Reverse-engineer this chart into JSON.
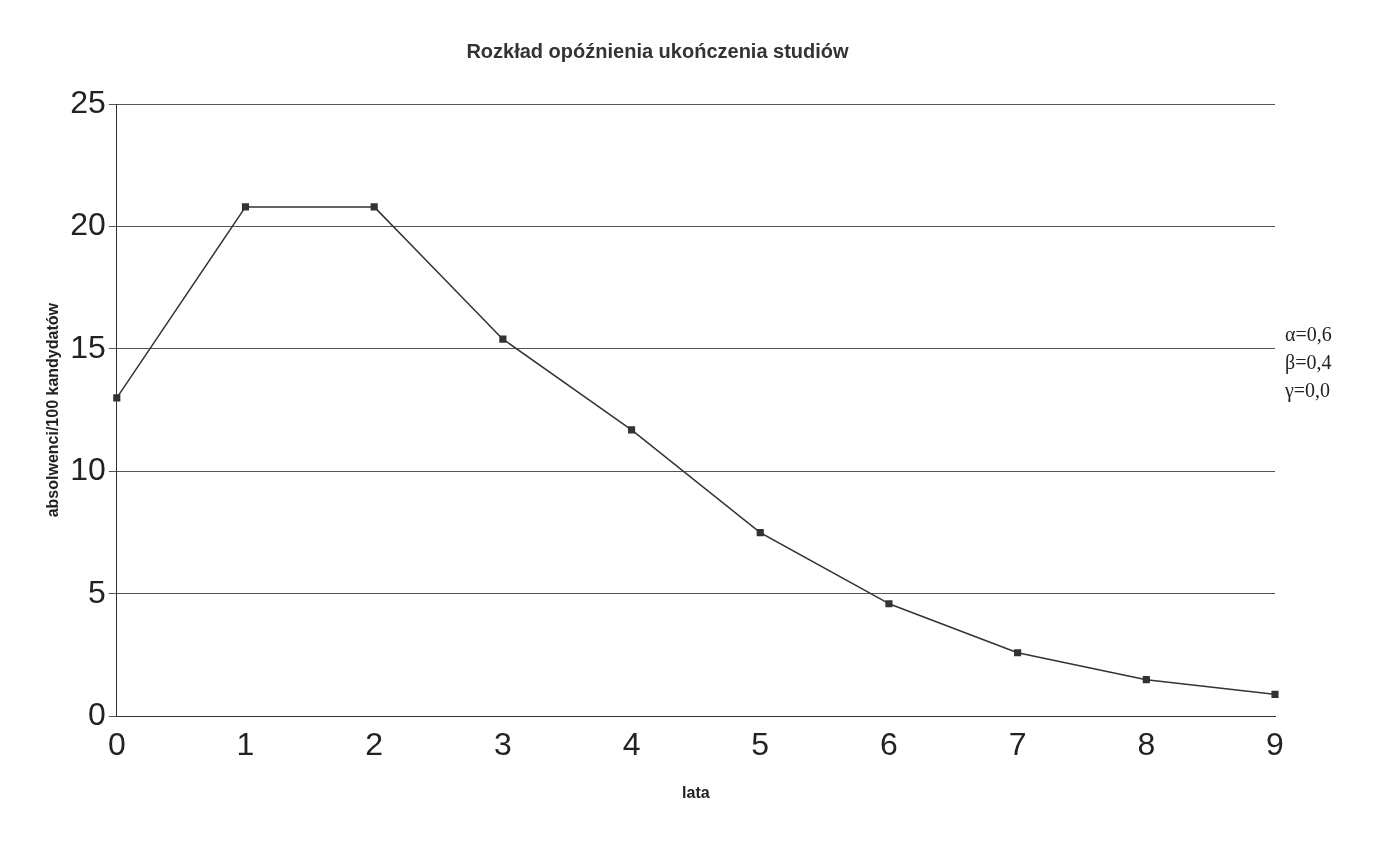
{
  "chart_data": {
    "type": "line",
    "title": "Rozkład opóźnienia ukończenia studiów",
    "xlabel": "lata",
    "ylabel": "absolwenci/100 kandydatów",
    "categories": [
      "0",
      "1",
      "2",
      "3",
      "4",
      "5",
      "6",
      "7",
      "8",
      "9"
    ],
    "series": [
      {
        "color": "#333333",
        "values": [
          13.0,
          20.8,
          20.8,
          15.4,
          11.7,
          7.5,
          4.6,
          2.6,
          1.5,
          0.9
        ]
      }
    ],
    "ylim": [
      0,
      25
    ],
    "yticks": [
      0,
      5,
      10,
      15,
      20,
      25
    ],
    "grid": "y",
    "legend": false,
    "marker": "square",
    "line_style": "solid",
    "annotations": [
      "α=0,6",
      "β=0,4",
      "γ=0,0"
    ]
  }
}
